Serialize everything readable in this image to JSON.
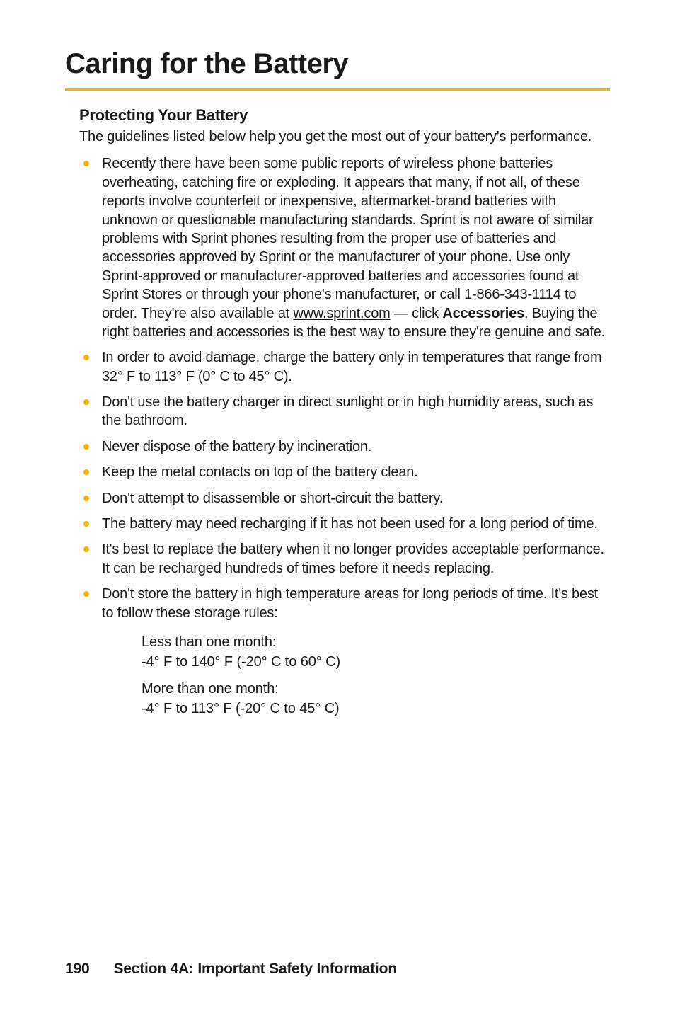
{
  "title": "Caring for the Battery",
  "subheading": "Protecting Your Battery",
  "intro": "The guidelines listed below help you get the most out of your battery's performance.",
  "bullets": [
    {
      "pre": "Recently there have been some public reports of wireless phone batteries overheating, catching fire or exploding. It appears that many, if not all, of these reports involve counterfeit or inexpensive, aftermarket-brand batteries with unknown or questionable manufacturing standards. Sprint is not aware of similar problems with Sprint phones resulting from the proper use of batteries and accessories approved by Sprint or the manufacturer of your phone. Use only Sprint-approved or manufacturer-approved batteries and accessories found at Sprint Stores or through your phone's manufacturer, or call 1-866-343-1114 to order. They're also available at ",
      "link": "www.sprint.com",
      "mid": " — click ",
      "bold": "Accessories",
      "post": ". Buying the right batteries and accessories is the best way to ensure they're genuine and safe."
    },
    {
      "text": "In order to avoid damage, charge the battery only in temperatures that range from 32° F to 113° F (0° C to 45° C)."
    },
    {
      "text": "Don't use the battery charger in direct sunlight or in high humidity areas, such as the bathroom."
    },
    {
      "text": "Never dispose of the battery by incineration."
    },
    {
      "text": "Keep the metal contacts on top of the battery clean."
    },
    {
      "text": "Don't attempt to disassemble or short-circuit the battery."
    },
    {
      "text": "The battery may need recharging if it has not been used for a long period of time."
    },
    {
      "text": "It's best to replace the battery when it no longer provides acceptable performance. It can be recharged hundreds of times before it needs replacing."
    },
    {
      "text": "Don't store the battery in high temperature areas for long periods of time. It's best to follow these storage rules:"
    }
  ],
  "storage": [
    {
      "label": "Less than one month:",
      "range": "-4° F to 140° F (-20° C to 60° C)"
    },
    {
      "label": "More than one month:",
      "range": "-4° F to 113° F (-20° C to 45° C)"
    }
  ],
  "footer": {
    "page": "190",
    "section": "Section 4A: Important Safety Information"
  },
  "colors": {
    "accent": "#f2b705",
    "text": "#1a1a1a",
    "bg": "#ffffff"
  }
}
